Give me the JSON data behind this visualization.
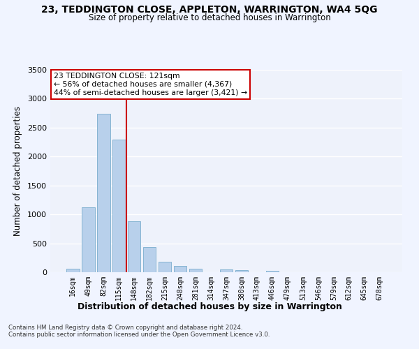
{
  "title1": "23, TEDDINGTON CLOSE, APPLETON, WARRINGTON, WA4 5QG",
  "title2": "Size of property relative to detached houses in Warrington",
  "xlabel": "Distribution of detached houses by size in Warrington",
  "ylabel": "Number of detached properties",
  "categories": [
    "16sqm",
    "49sqm",
    "82sqm",
    "115sqm",
    "148sqm",
    "182sqm",
    "215sqm",
    "248sqm",
    "281sqm",
    "314sqm",
    "347sqm",
    "380sqm",
    "413sqm",
    "446sqm",
    "479sqm",
    "513sqm",
    "546sqm",
    "579sqm",
    "612sqm",
    "645sqm",
    "678sqm"
  ],
  "values": [
    55,
    1120,
    2740,
    2295,
    880,
    440,
    185,
    105,
    60,
    0,
    50,
    35,
    0,
    25,
    0,
    0,
    0,
    0,
    0,
    0,
    0
  ],
  "bar_color": "#b8d0eb",
  "bar_edge_color": "#7aadce",
  "vline_index": 3,
  "vline_color": "#cc0000",
  "ylim": [
    0,
    3500
  ],
  "yticks": [
    0,
    500,
    1000,
    1500,
    2000,
    2500,
    3000,
    3500
  ],
  "annotation_line1": "23 TEDDINGTON CLOSE: 121sqm",
  "annotation_line2": "← 56% of detached houses are smaller (4,367)",
  "annotation_line3": "44% of semi-detached houses are larger (3,421) →",
  "annotation_box_color": "#ffffff",
  "annotation_box_edge": "#cc0000",
  "bg_color": "#eef2fb",
  "grid_color": "#ffffff",
  "footer1": "Contains HM Land Registry data © Crown copyright and database right 2024.",
  "footer2": "Contains public sector information licensed under the Open Government Licence v3.0."
}
